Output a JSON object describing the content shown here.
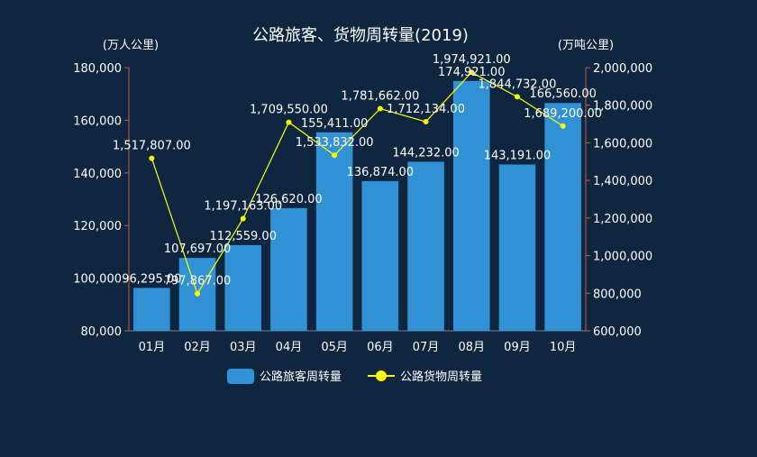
{
  "chart_data": {
    "type": "bar",
    "title": "公路旅客、货物周转量(2019)",
    "categories": [
      "01月",
      "02月",
      "03月",
      "04月",
      "05月",
      "06月",
      "07月",
      "08月",
      "09月",
      "10月"
    ],
    "y_left": {
      "label": "(万人公里)",
      "min": 80000,
      "max": 180000,
      "ticks": [
        80000,
        100000,
        120000,
        140000,
        160000,
        180000
      ]
    },
    "y_right": {
      "label": "(万吨公里)",
      "min": 600000,
      "max": 2000000,
      "ticks": [
        600000,
        800000,
        1000000,
        1200000,
        1400000,
        1600000,
        1800000,
        2000000
      ]
    },
    "series": [
      {
        "name": "公路旅客周转量",
        "type": "bar",
        "axis": "left",
        "color": "#3092d4",
        "values": [
          96295,
          107697,
          112559,
          126620,
          155411,
          136874,
          144232,
          174921,
          143191,
          166560
        ],
        "labels": [
          "96,295.00",
          "107,697.00",
          "112,559.00",
          "126,620.00",
          "155,411.00",
          "136,874.00",
          "144,232.00",
          "174,921.00",
          "143,191.00",
          "166,560.00"
        ]
      },
      {
        "name": "公路货物周转量",
        "type": "line",
        "axis": "right",
        "color": "#ffff00",
        "values": [
          1517807,
          797867,
          1197163,
          1709550,
          1533832,
          1781662,
          1712134,
          1974921,
          1844732,
          1689200
        ],
        "labels": [
          "1,517,807.00",
          "797,867.00",
          "1,197,163.00",
          "1,709,550.00",
          "1,533,832.00",
          "1,781,662.00",
          "1,712,134.00",
          "1,974,921.00",
          "1,844,732.00",
          "1,689,200.00"
        ]
      }
    ],
    "legend_position": "bottom-center",
    "grid": false
  }
}
